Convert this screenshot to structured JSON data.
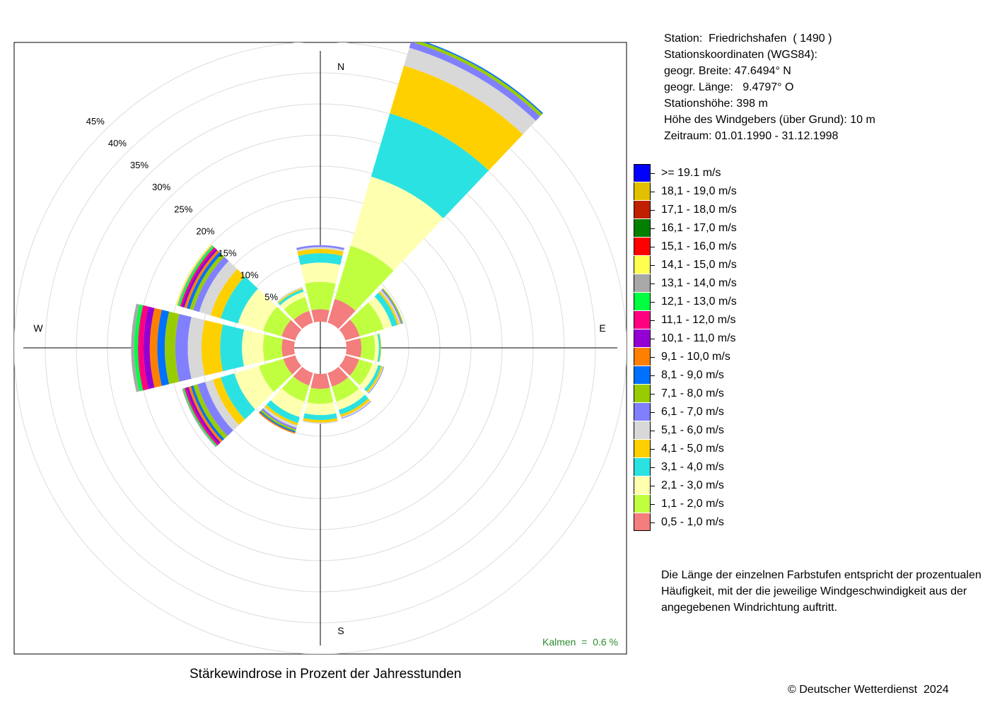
{
  "chart_data": {
    "type": "wind-rose",
    "title": "Stärkewindrose in Prozent der Jahresstunden",
    "radial_ticks": [
      "5%",
      "10%",
      "15%",
      "20%",
      "25%",
      "30%",
      "35%",
      "40%",
      "45%"
    ],
    "radial_tick_values": [
      5,
      10,
      15,
      20,
      25,
      30,
      35,
      40,
      45
    ],
    "compass_labels": {
      "north": "N",
      "east": "E",
      "south": "S",
      "west": "W"
    },
    "calm_label": "Kalmen  =  0.6 %",
    "calm_percent": 0.6,
    "calm_color": "#2e8b2e",
    "speed_classes": [
      {
        "label": "0,5 - 1,0 m/s",
        "color": "#f47d7d"
      },
      {
        "label": "1,1 - 2,0 m/s",
        "color": "#c0ff40"
      },
      {
        "label": "2,1 - 3,0 m/s",
        "color": "#ffffb0"
      },
      {
        "label": "3,1 - 4,0 m/s",
        "color": "#2be2e2"
      },
      {
        "label": "4,1 - 5,0 m/s",
        "color": "#ffd000"
      },
      {
        "label": "5,1 - 6,0 m/s",
        "color": "#d8d8d8"
      },
      {
        "label": "6,1 - 7,0 m/s",
        "color": "#8080ff"
      },
      {
        "label": "7,1 - 8,0 m/s",
        "color": "#98cc00"
      },
      {
        "label": "8,1 - 9,0 m/s",
        "color": "#0070ff"
      },
      {
        "label": "9,1 - 10,0 m/s",
        "color": "#ff8000"
      },
      {
        "label": "10,1 - 11,0 m/s",
        "color": "#9400d3"
      },
      {
        "label": "11,1 - 12,0 m/s",
        "color": "#ff0080"
      },
      {
        "label": "12,1 - 13,0 m/s",
        "color": "#00ff40"
      },
      {
        "label": "13,1 - 14,0 m/s",
        "color": "#a8a8a8"
      },
      {
        "label": "14,1 - 15,0 m/s",
        "color": "#ffff50"
      },
      {
        "label": "15,1 - 16,0 m/s",
        "color": "#ff0000"
      },
      {
        "label": "16,1 - 17,0 m/s",
        "color": "#008000"
      },
      {
        "label": "17,1 - 18,0 m/s",
        "color": "#c02000"
      },
      {
        "label": "18,1 - 19,0 m/s",
        "color": "#e0c000"
      },
      {
        "label": ">= 19.1 m/s",
        "color": "#0000ff"
      }
    ],
    "directions_deg": [
      0,
      30,
      60,
      90,
      120,
      150,
      180,
      210,
      240,
      270,
      300,
      330
    ],
    "series": [
      {
        "direction": 0,
        "values": [
          2.0,
          4.4,
          3.1,
          1.5,
          0.7,
          0.3,
          0.3
        ]
      },
      {
        "direction": 30,
        "values": [
          4.0,
          8.9,
          11.6,
          10.6,
          8.0,
          3.0,
          1.0,
          0.5,
          0.2
        ]
      },
      {
        "direction": 60,
        "values": [
          2.4,
          4.0,
          1.4,
          0.9,
          0.3,
          0.3,
          0.2,
          0.2
        ]
      },
      {
        "direction": 90,
        "values": [
          2.4,
          2.2,
          0.6,
          0.3,
          0.1
        ]
      },
      {
        "direction": 120,
        "values": [
          2.3,
          2.2,
          1.0,
          0.5,
          0.3,
          0.1,
          0.1
        ]
      },
      {
        "direction": 150,
        "values": [
          2.3,
          2.5,
          1.4,
          0.8,
          0.4,
          0.2,
          0.1
        ]
      },
      {
        "direction": 180,
        "values": [
          2.4,
          2.4,
          1.8,
          0.8,
          0.4,
          0.2
        ]
      },
      {
        "direction": 210,
        "values": [
          2.1,
          2.7,
          2.6,
          1.0,
          0.4,
          0.4,
          0.3,
          0.3,
          0.2,
          0.2
        ]
      },
      {
        "direction": 240,
        "values": [
          2.0,
          4.1,
          4.1,
          2.3,
          1.3,
          1.3,
          1.3,
          0.7,
          0.4,
          0.4,
          0.4,
          0.3,
          0.2,
          0.2
        ]
      },
      {
        "direction": 270,
        "values": [
          2.0,
          3.0,
          3.4,
          3.5,
          3.0,
          2.2,
          2.0,
          1.7,
          1.2,
          1.2,
          1.0,
          0.9,
          0.6,
          0.5
        ]
      },
      {
        "direction": 300,
        "values": [
          2.3,
          3.1,
          4.2,
          2.9,
          1.7,
          1.9,
          1.0,
          0.6,
          0.5,
          0.4,
          0.4,
          0.3,
          0.3,
          0.2,
          0.2
        ]
      },
      {
        "direction": 330,
        "values": [
          2.0,
          2.3,
          0.9,
          0.4,
          0.2,
          0.2
        ]
      }
    ]
  },
  "station": {
    "line1": "Station:  Friedrichshafen  ( 1490 )",
    "line2": "Stationskoordinaten (WGS84):",
    "line3": "geogr. Breite: 47.6494° N",
    "line4": "geogr. Länge:   9.4797° O",
    "line5": "Stationshöhe: 398 m",
    "line6": "Höhe des Windgebers (über Grund): 10 m",
    "line7": "Zeitraum: 01.01.1990 - 31.12.1998"
  },
  "note": {
    "line1": "Die Länge der einzelnen Farbstufen entspricht der prozentualen",
    "line2": "Häufigkeit, mit der die jeweilige Windgeschwindigkeit aus der",
    "line3": "angegebenen Windrichtung auftritt."
  },
  "footer": {
    "title": "Stärkewindrose in Prozent der Jahresstunden",
    "copyright": "© Deutscher Wetterdienst  2024"
  }
}
